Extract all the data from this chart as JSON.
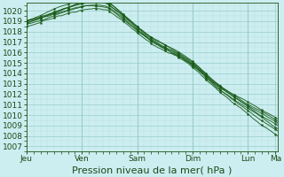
{
  "background_color": "#cceef0",
  "grid_major_color": "#99cccc",
  "grid_minor_color": "#b8dede",
  "line_color": "#1a5c1a",
  "ylabel_ticks": [
    1007,
    1008,
    1009,
    1010,
    1011,
    1012,
    1013,
    1014,
    1015,
    1016,
    1017,
    1018,
    1019,
    1020
  ],
  "ylim": [
    1006.5,
    1020.8
  ],
  "xlabels": [
    "Jeu",
    "Ven",
    "Sam",
    "Dim",
    "Lun",
    "Ma"
  ],
  "xlabel": "Pression niveau de la mer( hPa )",
  "tick_fontsize": 6.5,
  "xlabel_fontsize": 8
}
